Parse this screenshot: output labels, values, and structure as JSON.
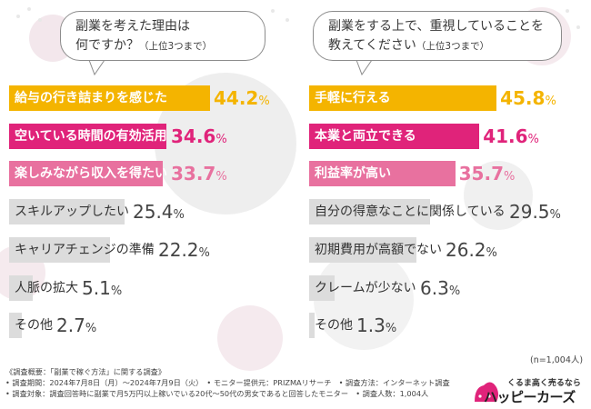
{
  "colors": {
    "gold": "#f4b400",
    "magenta": "#e0237a",
    "pink": "#e8719f",
    "gray": "#dcdcdc",
    "brand": "#e0237a"
  },
  "chart_data": [
    {
      "type": "bar",
      "orientation": "horizontal",
      "title": "副業を考えた理由は何ですか？（上位3つまで）",
      "title_line1": "副業を考えた理由は",
      "title_line2": "何ですか？",
      "title_note": "（上位3つまで）",
      "categories": [
        "給与の行き詰まりを感じた",
        "空いている時間の有効活用",
        "楽しみながら収入を得たい",
        "スキルアップしたい",
        "キャリアチェンジの準備",
        "人脈の拡大",
        "その他"
      ],
      "values": [
        44.2,
        34.6,
        33.7,
        25.4,
        22.2,
        5.1,
        2.7
      ],
      "value_labels": [
        "44.2",
        "34.6",
        "33.7",
        "25.4",
        "22.2",
        "5.1",
        "2.7"
      ],
      "unit": "%",
      "xlim": [
        0,
        100
      ]
    },
    {
      "type": "bar",
      "orientation": "horizontal",
      "title": "副業をする上で、重視していることを教えてください（上位3つまで）",
      "title_line1": "副業をする上で、重視していることを",
      "title_line2": "教えてください",
      "title_note": "（上位3つまで）",
      "categories": [
        "手軽に行える",
        "本業と両立できる",
        "利益率が高い",
        "自分の得意なことに関係している",
        "初期費用が高額でない",
        "クレームが少ない",
        "その他"
      ],
      "values": [
        45.8,
        41.6,
        35.7,
        29.5,
        26.2,
        6.3,
        1.3
      ],
      "value_labels": [
        "45.8",
        "41.6",
        "35.7",
        "29.5",
        "26.2",
        "6.3",
        "1.3"
      ],
      "unit": "%",
      "xlim": [
        0,
        100
      ]
    }
  ],
  "sample_size": "(n=1,004人)",
  "survey": {
    "line1": "《調査概要：「副業で稼ぐ方法」に関する調査》",
    "line2": "• 調査期間：2024年7月8日（月）～2024年7月9日（火）　• モニター提供元：PRIZMAリサーチ　• 調査方法：インターネット調査",
    "line3": "• 調査対象：調査回答時に副業で月5万円以上稼いでいる20代～50代の男女であると回答したモニター　• 調査人数：1,004人"
  },
  "brand": {
    "tagline": "くるま高く売るなら",
    "logo": "ハッピーカーズ"
  }
}
